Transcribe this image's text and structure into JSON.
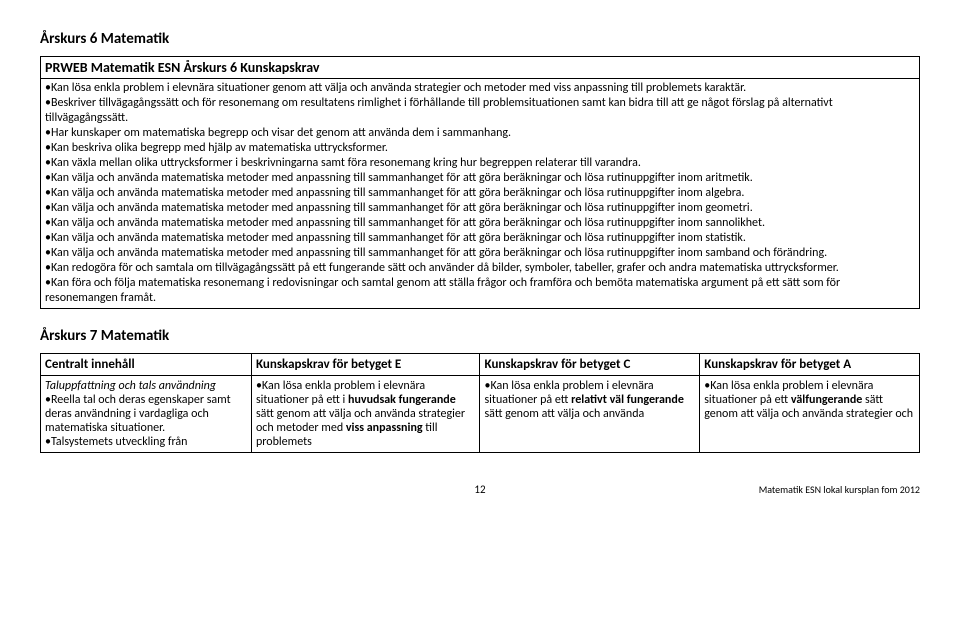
{
  "heading1": "Årskurs 6 Matematik",
  "box": {
    "title": "PRWEB Matematik ESN Årskurs 6 Kunskapskrav",
    "bullets": [
      "•Kan lösa enkla problem i elevnära situationer genom att välja och använda strategier och metoder med viss anpassning till problemets karaktär.",
      "•Beskriver tillvägagångssätt och för resonemang om resultatens rimlighet i förhållande till problemsituationen samt kan bidra till att ge något förslag på alternativt tillvägagångssätt.",
      "•Har kunskaper om matematiska begrepp och visar det genom att använda dem i sammanhang.",
      "•Kan beskriva olika begrepp med hjälp av matematiska uttrycksformer.",
      "•Kan växla mellan olika uttrycksformer i beskrivningarna samt föra resonemang kring hur begreppen relaterar till varandra.",
      "•Kan välja och använda matematiska metoder med anpassning till sammanhanget för att göra beräkningar och lösa rutinuppgifter inom aritmetik.",
      "•Kan välja och använda matematiska metoder med anpassning till sammanhanget för att göra beräkningar och lösa rutinuppgifter inom algebra.",
      "•Kan välja och använda matematiska metoder med anpassning till sammanhanget för att göra beräkningar och lösa rutinuppgifter inom geometri.",
      "•Kan välja och använda matematiska metoder med anpassning till sammanhanget för att göra beräkningar och lösa rutinuppgifter inom sannolikhet.",
      "•Kan välja och använda matematiska metoder med anpassning till sammanhanget för att göra beräkningar och lösa rutinuppgifter inom statistik.",
      "•Kan välja och använda matematiska metoder med anpassning till sammanhanget för att göra beräkningar och lösa rutinuppgifter inom samband och förändring.",
      "•Kan redogöra för och samtala om tillvägagångssätt på ett fungerande sätt och använder då bilder, symboler, tabeller, grafer och andra matematiska uttrycksformer.",
      "•Kan föra och följa matematiska resonemang i redovisningar och samtal genom att ställa frågor och framföra och bemöta matematiska argument på ett sätt som för resonemangen framåt."
    ]
  },
  "heading2": "Årskurs 7 Matematik",
  "table": {
    "headers": [
      "Centralt innehåll",
      "Kunskapskrav för betyget E",
      "Kunskapskrav för betyget C",
      "Kunskapskrav för betyget A"
    ],
    "row": {
      "c0_italic": "Taluppfattning och tals användning",
      "c0_rest": "•Reella tal och deras egenskaper samt deras användning i vardagliga och matematiska situationer.\n•Talsystemets utveckling från",
      "c1_pre": "•Kan lösa enkla problem i elevnära situationer på ett i ",
      "c1_bold": "huvudsak fungerande",
      "c1_post": " sätt genom att välja och använda strategier och metoder med ",
      "c1_bold2": "viss anpassning",
      "c1_post2": " till problemets",
      "c2_pre": "•Kan lösa enkla problem i elevnära situationer på ett ",
      "c2_bold": "relativt väl fungerande",
      "c2_post": " sätt genom att välja och använda",
      "c3_pre": "•Kan lösa enkla problem i elevnära situationer på ett ",
      "c3_bold": "välfungerande",
      "c3_post": " sätt genom att välja och använda strategier och"
    }
  },
  "footer": {
    "page": "12",
    "right": "Matematik ESN lokal kursplan fom 2012"
  }
}
